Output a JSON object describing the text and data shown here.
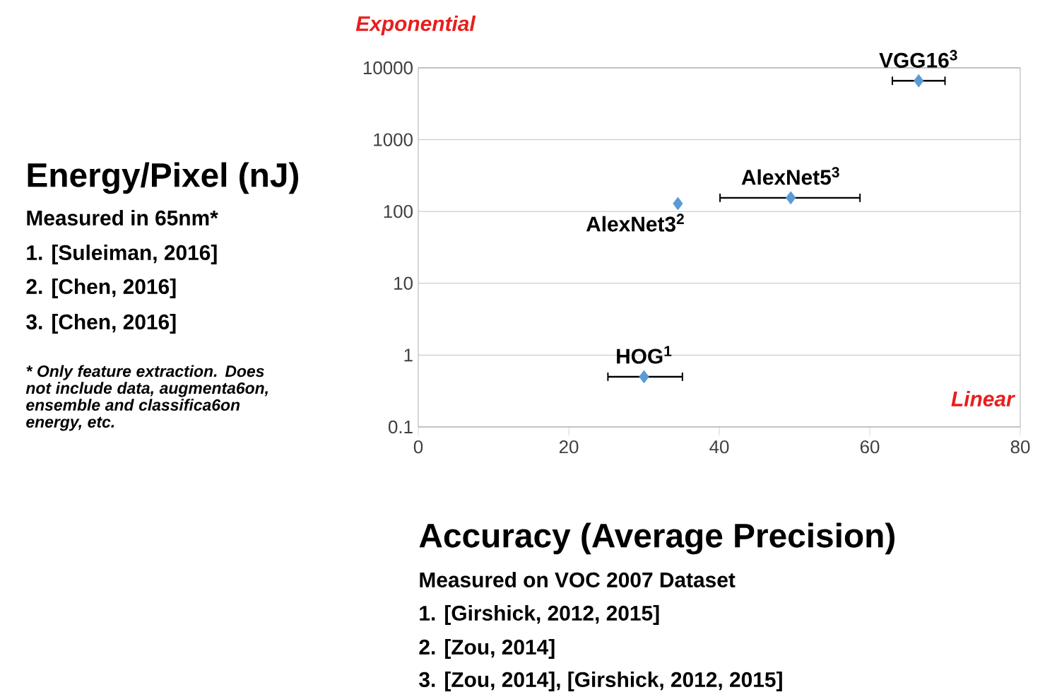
{
  "chart_data": {
    "type": "scatter",
    "xlabel": "Accuracy (Average Precision)",
    "ylabel": "Energy/Pixel (nJ)",
    "x": [
      30,
      34.5,
      49.5,
      66.5
    ],
    "values": [
      0.5,
      129,
      155,
      6600
    ],
    "xerrors": [
      [
        25.2,
        35.1
      ],
      null,
      [
        40.1,
        58.7
      ],
      [
        63,
        70
      ]
    ],
    "color": "#5b9bd5",
    "marker": "diamond",
    "log": "y",
    "grid": "y",
    "xlim": [
      0,
      80
    ],
    "xticks": [
      0,
      20,
      40,
      60,
      80
    ],
    "ylim": [
      0.1,
      10000
    ],
    "yticks": [
      0.1,
      1,
      10,
      100,
      1000,
      10000
    ],
    "annotations": [
      {
        "text": "HOG$^{1}$",
        "x": 30,
        "y": 0.5
      },
      {
        "text": "AlexNet3$^{2}$",
        "x": 34.5,
        "y": 129
      },
      {
        "text": "AlexNet5$^{3}$",
        "x": 49.5,
        "y": 155
      },
      {
        "text": "VGG16$^{3}$",
        "x": 66.5,
        "y": 6600
      },
      "Exponential",
      "Linear",
      "Measured in 65nm*",
      "1. [Suleiman, 2016]",
      "2. [Chen, 2016]",
      "3. [Chen, 2016]",
      "* Only feature extraction. Does not include data, augmenta6on, ensemble and classifica6on energy, etc.",
      "Measured on VOC 2007 Dataset",
      "1. [Girshick, 2012, 2015]",
      "2. [Zou, 2014]",
      "3. [Zou, 2014], [Girshick, 2012, 2015]"
    ]
  }
}
